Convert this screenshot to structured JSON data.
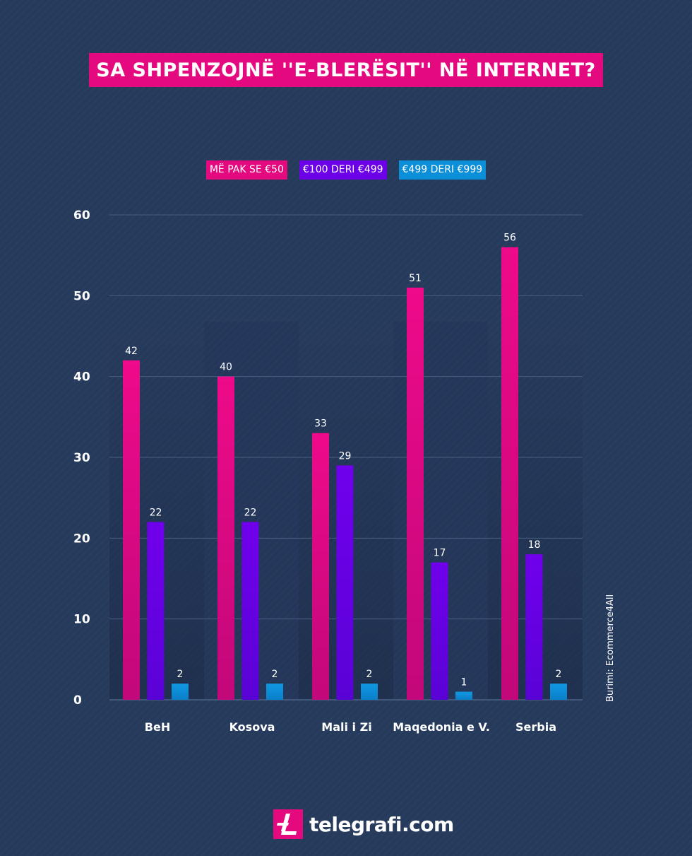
{
  "chart_data": {
    "type": "bar",
    "title": "SA SHPENZOJNË ''E-BLERËSIT'' NË INTERNET?",
    "xlabel": "",
    "ylabel": "",
    "ylim": [
      0,
      60
    ],
    "yticks": [
      0,
      10,
      20,
      30,
      40,
      50,
      60
    ],
    "grid": true,
    "legend_position": "top-center",
    "categories": [
      "BeH",
      "Kosova",
      "Mali i Zi",
      "Maqedonia e V.",
      "Serbia"
    ],
    "series": [
      {
        "name": "MË PAK SE €50",
        "color": "#e5097f",
        "values": [
          42,
          40,
          33,
          51,
          56
        ],
        "labels": [
          "42",
          "40",
          "33",
          "51",
          "56"
        ]
      },
      {
        "name": "€100 DERI €499",
        "color": "#6c00e6",
        "values": [
          22,
          22,
          29,
          17,
          18
        ],
        "labels": [
          "22",
          "22",
          "29",
          "17",
          "18"
        ]
      },
      {
        "name": "€499 DERI €999",
        "color": "#0b8fd9",
        "values": [
          2,
          2,
          2,
          1,
          2
        ],
        "labels": [
          "2",
          "2",
          "2",
          "1",
          "2"
        ]
      }
    ]
  },
  "source": "Burimi: Ecommerce4All",
  "brand": {
    "name": "telegrafi.com",
    "color": "#e5097f"
  }
}
